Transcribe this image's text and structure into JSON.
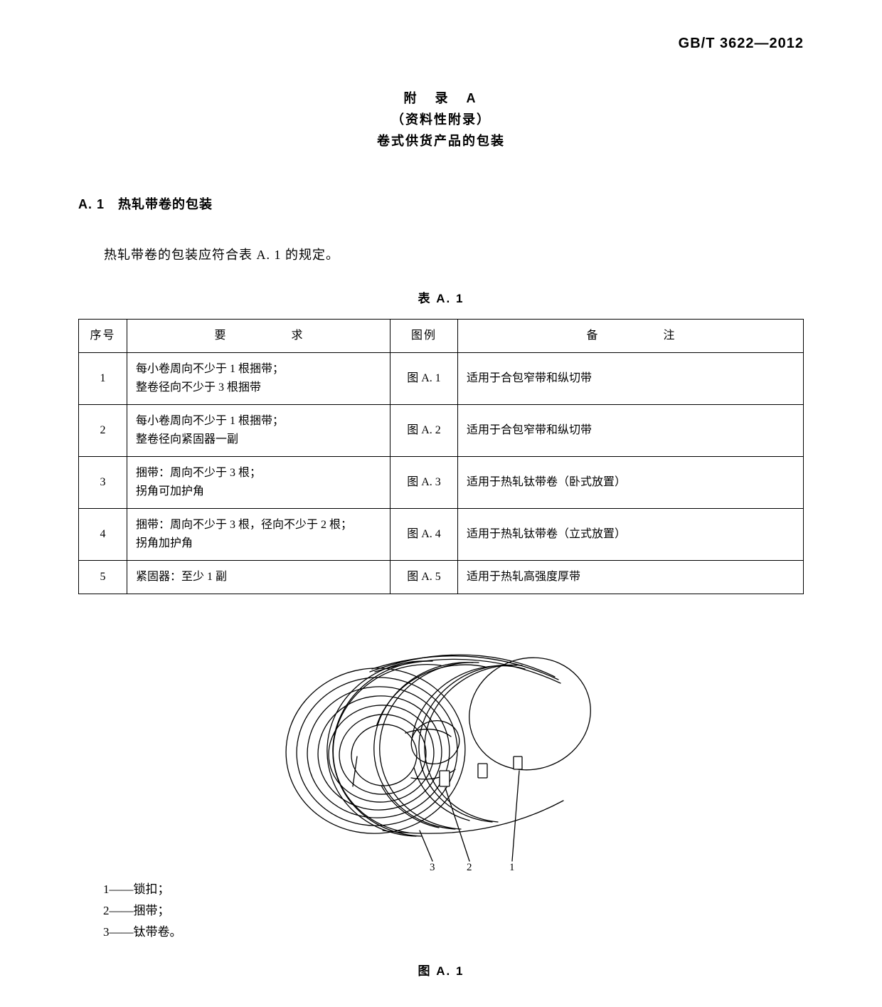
{
  "doc_code": "GB/T 3622—2012",
  "appendix": {
    "title": "附　录　A",
    "subtitle": "（资料性附录）",
    "heading": "卷式供货产品的包装"
  },
  "section_a1": {
    "number_label": "A. 1　热轧带卷的包装",
    "body": "热轧带卷的包装应符合表 A. 1 的规定。"
  },
  "table_a1": {
    "caption": "表 A. 1",
    "columns": [
      "序号",
      "要　　求",
      "图例",
      "备　　注"
    ],
    "rows": [
      {
        "seq": "1",
        "req": "每小卷周向不少于 1 根捆带；\n整卷径向不少于 3 根捆带",
        "fig": "图 A. 1",
        "note": "适用于合包窄带和纵切带"
      },
      {
        "seq": "2",
        "req": "每小卷周向不少于 1 根捆带；\n整卷径向紧固器一副",
        "fig": "图 A. 2",
        "note": "适用于合包窄带和纵切带"
      },
      {
        "seq": "3",
        "req": "捆带：周向不少于 3 根；\n拐角可加护角",
        "fig": "图 A. 3",
        "note": "适用于热轧钛带卷（卧式放置）"
      },
      {
        "seq": "4",
        "req": "捆带：周向不少于 3 根，径向不少于 2 根；\n拐角加护角",
        "fig": "图 A. 4",
        "note": "适用于热轧钛带卷（立式放置）"
      },
      {
        "seq": "5",
        "req": "紧固器：至少 1 副",
        "fig": "图 A. 5",
        "note": "适用于热轧高强度厚带"
      }
    ]
  },
  "figure_a1": {
    "caption": "图 A. 1",
    "legend": [
      {
        "num": "1",
        "text": "锁扣；"
      },
      {
        "num": "2",
        "text": "捆带；"
      },
      {
        "num": "3",
        "text": "钛带卷。"
      }
    ],
    "callouts": [
      "3",
      "2",
      "1"
    ],
    "style": {
      "stroke_color": "#000000",
      "fill_color": "#ffffff",
      "line_width": 1.3,
      "coil_ellipse_rx": 125,
      "coil_ellipse_ry": 115,
      "inner_hole_rx": 45,
      "inner_hole_ry": 42,
      "coil_length": 300,
      "ring_count": 4,
      "perspective_dx": 55,
      "perspective_dy": -32
    }
  }
}
